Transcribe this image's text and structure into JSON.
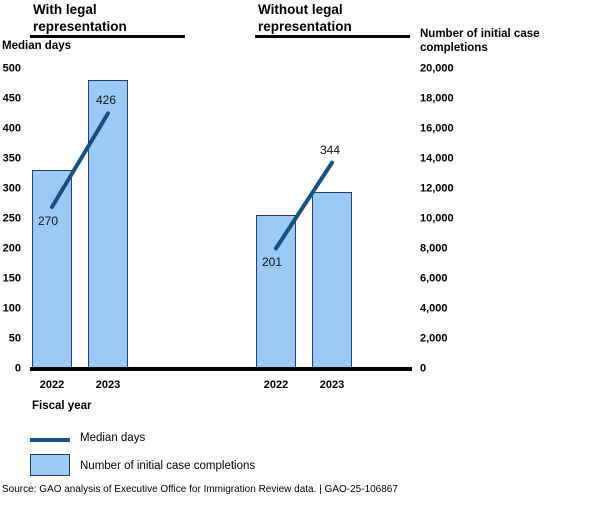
{
  "source": "Source: GAO analysis of Executive Office for Immigration Review data.  |  GAO-25-106867",
  "colors": {
    "bar_fill": "#9CCAF7",
    "bar_border": "#24425E",
    "line": "#17527F",
    "axis_line": "#000000"
  },
  "chart_data": {
    "type": "bar",
    "subtype": "grouped bars with overlaid line (dual axis)",
    "xlabel": "Fiscal year",
    "left_axis": {
      "label": "Median days",
      "range": [
        0,
        500
      ],
      "ticks": [
        {
          "value": 0,
          "label": "0"
        },
        {
          "value": 50,
          "label": "50"
        },
        {
          "value": 100,
          "label": "100"
        },
        {
          "value": 150,
          "label": "150"
        },
        {
          "value": 200,
          "label": "200"
        },
        {
          "value": 250,
          "label": "250"
        },
        {
          "value": 300,
          "label": "300"
        },
        {
          "value": 350,
          "label": "350"
        },
        {
          "value": 400,
          "label": "400"
        },
        {
          "value": 450,
          "label": "450"
        },
        {
          "value": 500,
          "label": "500"
        }
      ]
    },
    "right_axis": {
      "label": "Number of initial case\ncompletions",
      "range": [
        0,
        20000
      ],
      "ticks": [
        {
          "value": 0,
          "label": "0"
        },
        {
          "value": 2000,
          "label": "2,000"
        },
        {
          "value": 4000,
          "label": "4,000"
        },
        {
          "value": 6000,
          "label": "6,000"
        },
        {
          "value": 8000,
          "label": "8,000"
        },
        {
          "value": 10000,
          "label": "10,000"
        },
        {
          "value": 12000,
          "label": "12,000"
        },
        {
          "value": 14000,
          "label": "14,000"
        },
        {
          "value": 16000,
          "label": "16,000"
        },
        {
          "value": 18000,
          "label": "18,000"
        },
        {
          "value": 20000,
          "label": "20,000"
        }
      ]
    },
    "groups": [
      {
        "title": "With legal\nrepresentation",
        "categories": [
          "2022",
          "2023"
        ],
        "bar_series": {
          "name": "Number of initial case completions",
          "axis": "right",
          "values": [
            13300,
            19300
          ],
          "estimated_from_gridlines": true
        },
        "line_series": {
          "name": "Median days",
          "axis": "left",
          "values": [
            270,
            426
          ],
          "labels": [
            "270",
            "426"
          ],
          "label_positions": [
            "below",
            "above"
          ]
        }
      },
      {
        "title": "Without legal\nrepresentation",
        "categories": [
          "2022",
          "2023"
        ],
        "bar_series": {
          "name": "Number of initial case completions",
          "axis": "right",
          "values": [
            10300,
            11800
          ],
          "estimated_from_gridlines": true
        },
        "line_series": {
          "name": "Median days",
          "axis": "left",
          "values": [
            201,
            344
          ],
          "labels": [
            "201",
            "344"
          ],
          "label_positions": [
            "below",
            "above"
          ]
        }
      }
    ],
    "legend": [
      {
        "type": "line",
        "label": "Median days"
      },
      {
        "type": "bar",
        "label": "Number of initial case completions"
      }
    ]
  }
}
